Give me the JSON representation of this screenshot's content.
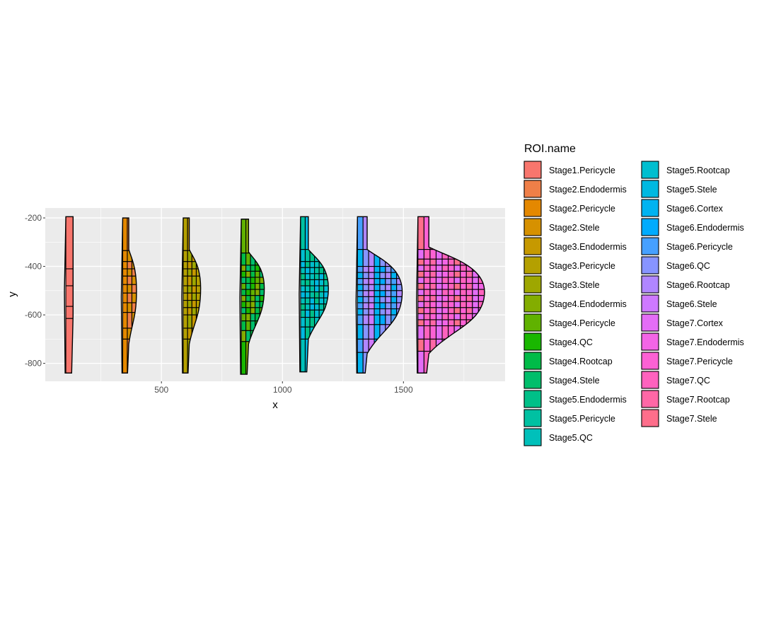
{
  "chart_data": {
    "type": "polygon",
    "title": "",
    "xlabel": "x",
    "ylabel": "y",
    "xlim": [
      20,
      1920
    ],
    "ylim": [
      -874,
      -159
    ],
    "x_ticks": [
      500,
      1000,
      1500
    ],
    "x_tick_labels": [
      "500",
      "1000",
      "1500"
    ],
    "y_ticks": [
      -200,
      -400,
      -600,
      -800
    ],
    "y_tick_labels": [
      "-200",
      "-400",
      "-600",
      "-800"
    ],
    "grid": true,
    "legend": {
      "title": "ROI.name",
      "placement": "right",
      "columns": 2,
      "entries": [
        "Stage1.Pericycle",
        "Stage2.Endodermis",
        "Stage2.Pericycle",
        "Stage2.Stele",
        "Stage3.Endodermis",
        "Stage3.Pericycle",
        "Stage3.Stele",
        "Stage4.Endodermis",
        "Stage4.Pericycle",
        "Stage4.QC",
        "Stage4.Rootcap",
        "Stage4.Stele",
        "Stage5.Endodermis",
        "Stage5.Pericycle",
        "Stage5.QC",
        "Stage5.Rootcap",
        "Stage5.Stele",
        "Stage6.Cortex",
        "Stage6.Endodermis",
        "Stage6.Pericycle",
        "Stage6.QC",
        "Stage6.Rootcap",
        "Stage6.Stele",
        "Stage7.Cortex",
        "Stage7.Endodermis",
        "Stage7.Pericycle",
        "Stage7.QC",
        "Stage7.Rootcap",
        "Stage7.Stele"
      ]
    },
    "stages": [
      {
        "name": "Stage1",
        "x_left": 105,
        "stalk": 30,
        "x_max": 135,
        "top": -195,
        "bottom": -840,
        "bulge_top": -400,
        "bulge_bottom": -600,
        "bulge_peak": -480,
        "classes": [
          0
        ],
        "rows": [
          -410,
          -480,
          -565,
          -615
        ],
        "cols": 1
      },
      {
        "name": "Stage2",
        "x_left": 340,
        "stalk": 25,
        "x_max": 397,
        "top": -200,
        "bottom": -840,
        "bulge_top": -330,
        "bulge_bottom": -720,
        "bulge_peak": -500,
        "classes": [
          2,
          1,
          3
        ],
        "rows": [
          -335,
          -380,
          -410,
          -440,
          -475,
          -510,
          -550,
          -590,
          -655,
          -700
        ],
        "cols": 3
      },
      {
        "name": "Stage3",
        "x_left": 590,
        "stalk": 25,
        "x_max": 662,
        "top": -200,
        "bottom": -840,
        "bulge_top": -330,
        "bulge_bottom": -720,
        "bulge_peak": -490,
        "classes": [
          5,
          4,
          6
        ],
        "rows": [
          -335,
          -380,
          -410,
          -440,
          -480,
          -510,
          -540,
          -570,
          -600,
          -655,
          -700
        ],
        "cols": 4
      },
      {
        "name": "Stage4",
        "x_left": 830,
        "stalk": 30,
        "x_max": 925,
        "top": -205,
        "bottom": -845,
        "bulge_top": -340,
        "bulge_bottom": -720,
        "bulge_peak": -490,
        "classes": [
          8,
          7,
          11,
          10,
          9
        ],
        "rows": [
          -345,
          -395,
          -420,
          -445,
          -470,
          -495,
          -520,
          -545,
          -570,
          -595,
          -625,
          -665,
          -710
        ],
        "cols": 5
      },
      {
        "name": "Stage5",
        "x_left": 1075,
        "stalk": 32,
        "x_max": 1190,
        "top": -195,
        "bottom": -835,
        "bulge_top": -330,
        "bulge_bottom": -700,
        "bulge_peak": -490,
        "classes": [
          13,
          16,
          12,
          15,
          14
        ],
        "rows": [
          -330,
          -380,
          -405,
          -430,
          -455,
          -480,
          -505,
          -530,
          -555,
          -580,
          -610,
          -650,
          -700
        ],
        "cols": 6
      },
      {
        "name": "Stage6",
        "x_left": 1310,
        "stalk": 40,
        "x_max": 1495,
        "top": -195,
        "bottom": -840,
        "bulge_top": -330,
        "bulge_bottom": -760,
        "bulge_peak": -505,
        "classes": [
          19,
          21,
          22,
          17,
          18,
          20
        ],
        "rows": [
          -330,
          -400,
          -425,
          -450,
          -475,
          -500,
          -525,
          -550,
          -575,
          -600,
          -640,
          -700,
          -755
        ],
        "cols": 8
      },
      {
        "name": "Stage7",
        "x_left": 1560,
        "stalk": 45,
        "x_max": 1835,
        "top": -195,
        "bottom": -840,
        "bulge_top": -320,
        "bulge_bottom": -760,
        "bulge_peak": -505,
        "classes": [
          28,
          25,
          27,
          23,
          24,
          26
        ],
        "rows": [
          -330,
          -370,
          -395,
          -420,
          -445,
          -470,
          -495,
          -520,
          -545,
          -570,
          -595,
          -620,
          -645,
          -700,
          -750
        ],
        "cols": 11
      }
    ]
  }
}
